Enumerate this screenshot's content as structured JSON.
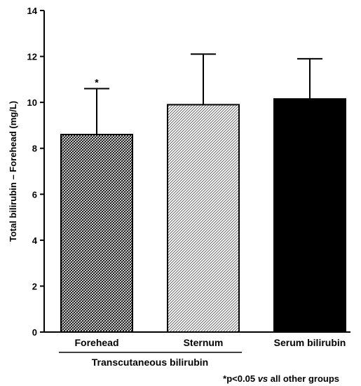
{
  "chart_data": {
    "type": "bar",
    "title": "",
    "xlabel": "",
    "ylabel": "Total bilirubin – Forehead (mg/L)",
    "ylim": [
      0,
      14
    ],
    "yticks": [
      0,
      2,
      4,
      6,
      8,
      10,
      12,
      14
    ],
    "grid": false,
    "categories": [
      "Forehead",
      "Sternum",
      "Serum bilirubin"
    ],
    "values": [
      8.6,
      9.9,
      10.15
    ],
    "error_upper": [
      10.6,
      12.1,
      11.9
    ],
    "significance_marks": [
      "*",
      "",
      ""
    ],
    "group_label": "Transcutaneous bilirubin",
    "group_members": [
      "Forehead",
      "Sternum"
    ],
    "bar_fills": [
      "dense-crosshatch",
      "light-diagonal-hatch",
      "solid-black"
    ],
    "footnote": {
      "prefix": "*p<0.05 ",
      "italic": "vs",
      "suffix": " all other groups"
    }
  }
}
